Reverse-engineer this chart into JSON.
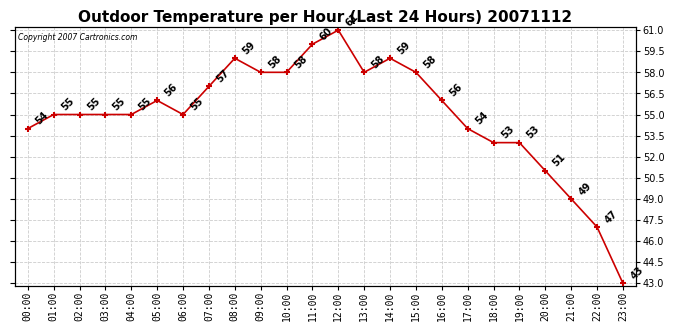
{
  "title": "Outdoor Temperature per Hour (Last 24 Hours) 20071112",
  "copyright": "Copyright 2007 Cartronics.com",
  "hours": [
    "00:00",
    "01:00",
    "02:00",
    "03:00",
    "04:00",
    "05:00",
    "06:00",
    "07:00",
    "08:00",
    "09:00",
    "10:00",
    "11:00",
    "12:00",
    "13:00",
    "14:00",
    "15:00",
    "16:00",
    "17:00",
    "18:00",
    "19:00",
    "20:00",
    "21:00",
    "22:00",
    "23:00"
  ],
  "temps": [
    54,
    55,
    55,
    55,
    55,
    56,
    55,
    57,
    59,
    58,
    58,
    60,
    61,
    58,
    59,
    58,
    56,
    54,
    53,
    53,
    51,
    49,
    47,
    43
  ],
  "line_color": "#cc0000",
  "marker_color": "#cc0000",
  "bg_color": "#ffffff",
  "grid_color": "#cccccc",
  "ylim_min": 43.0,
  "ylim_max": 61.0,
  "ytick_step": 1.5,
  "title_fontsize": 11,
  "label_fontsize": 7,
  "annot_fontsize": 7
}
